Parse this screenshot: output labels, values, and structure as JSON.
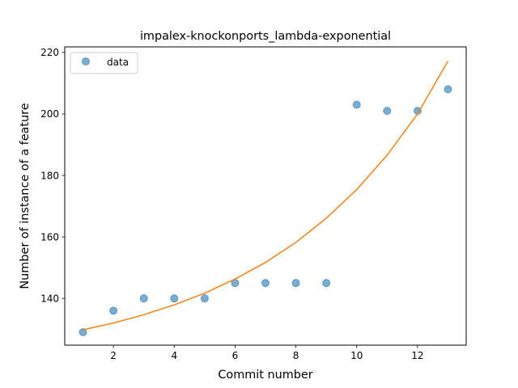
{
  "chart_data": {
    "type": "scatter",
    "title": "impalex-knockonports_lambda-exponential",
    "xlabel": "Commit number",
    "ylabel": "Number of instance of a feature",
    "xlim": [
      0.4,
      13.6
    ],
    "ylim": [
      124.8,
      221.8
    ],
    "xticks": [
      2,
      4,
      6,
      8,
      10,
      12
    ],
    "yticks": [
      140,
      160,
      180,
      200,
      220
    ],
    "legend_position": "top-left",
    "series": [
      {
        "name": "data",
        "kind": "scatter",
        "color": "#1f77b4",
        "x": [
          1,
          2,
          3,
          4,
          5,
          6,
          7,
          8,
          9,
          10,
          11,
          12,
          13
        ],
        "y": [
          129,
          136,
          140,
          140,
          140,
          145,
          145,
          145,
          145,
          203,
          201,
          201,
          208
        ]
      },
      {
        "kind": "line",
        "color": "#ff7f0e",
        "x": [
          1,
          2,
          3,
          4,
          5,
          6,
          7,
          8,
          9,
          10,
          11,
          12,
          13
        ],
        "y": [
          129.8,
          132.0,
          134.7,
          137.9,
          141.7,
          146.3,
          151.7,
          158.2,
          166.1,
          175.4,
          186.6,
          200.0,
          217.2
        ]
      }
    ]
  }
}
